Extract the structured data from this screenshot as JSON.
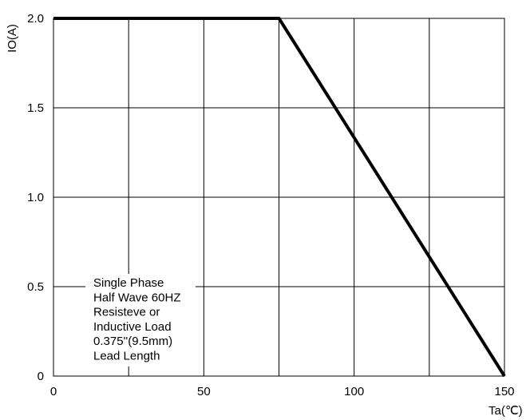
{
  "chart_data": {
    "type": "line",
    "title": "",
    "xlabel": "Ta(℃)",
    "ylabel": "IO(A)",
    "xlim": [
      0,
      150
    ],
    "ylim": [
      0,
      2.0
    ],
    "x_ticks": [
      "0",
      "50",
      "100",
      "150"
    ],
    "y_ticks": [
      "0",
      "0.5",
      "1.0",
      "1.5",
      "2.0"
    ],
    "grid": true,
    "series": [
      {
        "x": [
          0,
          75,
          150
        ],
        "y": [
          2.0,
          2.0,
          0
        ]
      }
    ],
    "annotation": [
      "Single Phase",
      "Half Wave 60HZ",
      "Resisteve or",
      "Inductive Load",
      "0.375''(9.5mm)",
      "Lead Length"
    ]
  }
}
